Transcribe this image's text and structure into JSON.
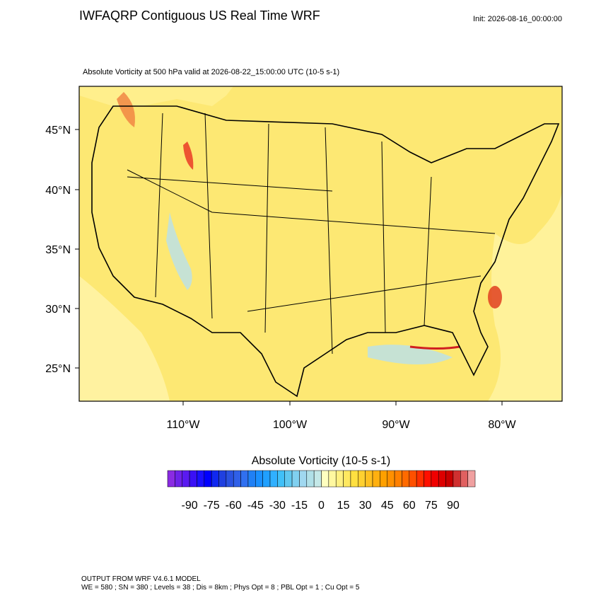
{
  "header": {
    "title": "IWFAQRP Contiguous US Real Time WRF",
    "init": "Init: 2026-08-16_00:00:00",
    "subtitle": "Absolute Vorticity at 500 hPa valid at 2026-08-22_15:00:00 UTC   (10-5 s-1)"
  },
  "map": {
    "lat_labels": [
      "45°N",
      "40°N",
      "35°N",
      "30°N",
      "25°N"
    ],
    "lon_labels": [
      "110°W",
      "100°W",
      "90°W",
      "80°W"
    ]
  },
  "colorbar": {
    "title": "Absolute Vorticity  (10-5 s-1)",
    "ticks": [
      -90,
      -75,
      -60,
      -45,
      -30,
      -15,
      0,
      15,
      30,
      45,
      60,
      75,
      90
    ],
    "colors": [
      "#8a2be2",
      "#6e22e8",
      "#5a1af0",
      "#3a10f5",
      "#1a10ff",
      "#0000ff",
      "#1028f0",
      "#2040e0",
      "#2a52e0",
      "#3060e8",
      "#3070f0",
      "#2080f5",
      "#1a90ff",
      "#20a0ff",
      "#30b0ff",
      "#40c0f8",
      "#60c8f0",
      "#80d0f0",
      "#a0d8f0",
      "#b0e0e8",
      "#c4e8e8",
      "#ffffc0",
      "#fff8a0",
      "#fff080",
      "#ffe860",
      "#ffe040",
      "#ffd030",
      "#ffc020",
      "#ffb010",
      "#ffa000",
      "#ff9000",
      "#ff8000",
      "#ff6a00",
      "#ff5000",
      "#ff3000",
      "#ff1000",
      "#f00000",
      "#dd0000",
      "#c80000",
      "#d03030",
      "#e06060",
      "#f0a0a0"
    ]
  },
  "footer": {
    "line1": "OUTPUT FROM WRF V4.6.1 MODEL",
    "line2": "WE = 580 ; SN = 380 ; Levels = 38 ; Dis = 8km ; Phys Opt = 8 ; PBL Opt = 1 ; Cu Opt = 5"
  }
}
